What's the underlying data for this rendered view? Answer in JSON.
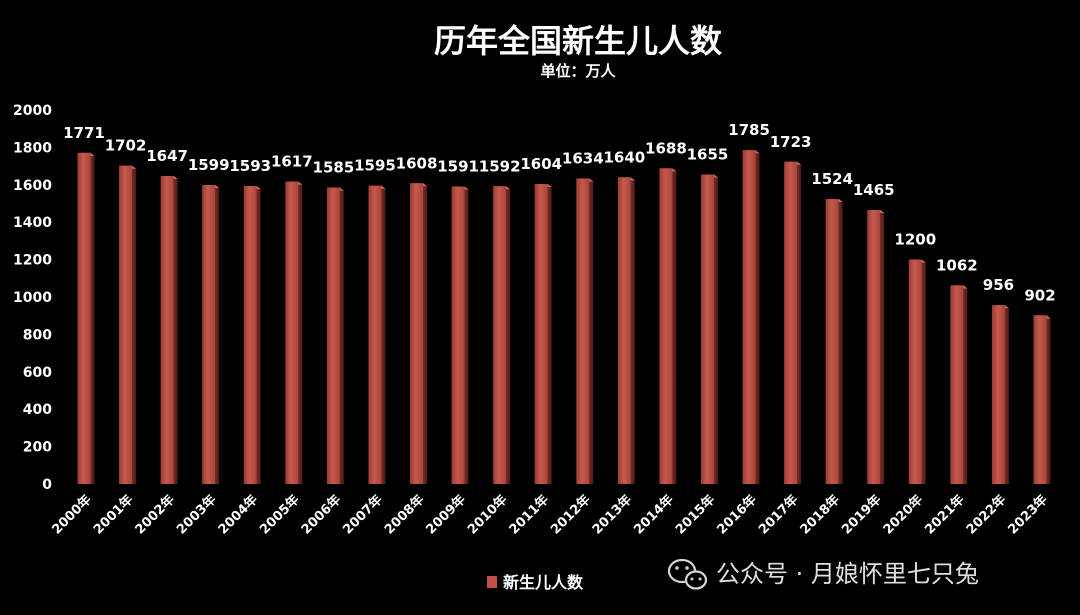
{
  "chart_data": {
    "type": "bar",
    "title": "历年全国新生儿人数",
    "subtitle": "单位：万人",
    "categories": [
      "2000年",
      "2001年",
      "2002年",
      "2003年",
      "2004年",
      "2005年",
      "2006年",
      "2007年",
      "2008年",
      "2009年",
      "2010年",
      "2011年",
      "2012年",
      "2013年",
      "2014年",
      "2015年",
      "2016年",
      "2017年",
      "2018年",
      "2019年",
      "2020年",
      "2021年",
      "2022年",
      "2023年"
    ],
    "series": [
      {
        "name": "新生儿人数",
        "color": "#c0504d",
        "values": [
          1771,
          1702,
          1647,
          1599,
          1593,
          1617,
          1585,
          1595,
          1608,
          1591,
          1592,
          1604,
          1634,
          1640,
          1688,
          1655,
          1785,
          1723,
          1524,
          1465,
          1200,
          1062,
          956,
          902
        ]
      }
    ],
    "ylim": [
      0,
      2000
    ],
    "yticks": [
      0,
      200,
      400,
      600,
      800,
      1000,
      1200,
      1400,
      1600,
      1800,
      2000
    ],
    "grid": false,
    "legend": "bottom"
  },
  "watermark": {
    "icon": "wechat-icon",
    "text": "公众号 · 月娘怀里七只兔"
  }
}
